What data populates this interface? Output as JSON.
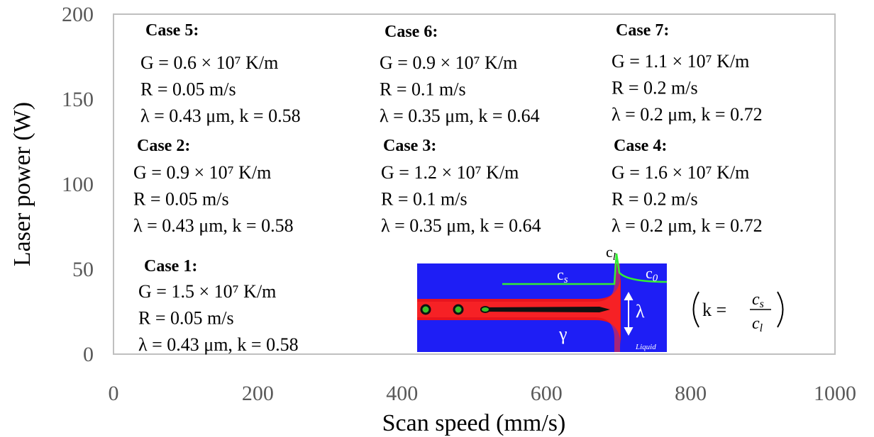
{
  "chart_data": {
    "type": "annotated-axes",
    "x_label": "Scan speed (mm/s)",
    "y_label": "Laser power (W)",
    "xlim": [
      0,
      1000
    ],
    "ylim": [
      0,
      200
    ],
    "xticks": [
      0,
      200,
      400,
      600,
      800,
      1000
    ],
    "yticks": [
      0,
      50,
      100,
      150,
      200
    ],
    "cases": [
      {
        "title": "Case 1:",
        "lines": [
          "G = 1.5 × 10⁷ K/m",
          "R = 0.05 m/s",
          "λ = 0.43 μm, k = 0.58"
        ]
      },
      {
        "title": "Case 2:",
        "lines": [
          "G = 0.9 × 10⁷ K/m",
          "R = 0.05 m/s",
          "λ = 0.43 μm, k = 0.58"
        ]
      },
      {
        "title": "Case 3:",
        "lines": [
          "G = 1.2 × 10⁷ K/m",
          "R = 0.1 m/s",
          "λ = 0.35 μm, k = 0.64"
        ]
      },
      {
        "title": "Case 4:",
        "lines": [
          "G = 1.6 × 10⁷ K/m",
          "R = 0.2 m/s",
          "λ = 0.2 μm, k = 0.72"
        ]
      },
      {
        "title": "Case 5:",
        "lines": [
          "G = 0.6 × 10⁷ K/m",
          "R = 0.05 m/s",
          "λ = 0.43 μm, k = 0.58"
        ]
      },
      {
        "title": "Case 6:",
        "lines": [
          "G = 0.9 × 10⁷ K/m",
          "R = 0.1 m/s",
          "λ = 0.35 μm, k = 0.64"
        ]
      },
      {
        "title": "Case 7:",
        "lines": [
          "G = 1.1 × 10⁷ K/m",
          "R = 0.2 m/s",
          "λ = 0.2 μm, k = 0.72"
        ]
      }
    ],
    "inset": {
      "cs": "c",
      "cs_sub": "s",
      "cl": "c",
      "cl_sub": "l",
      "c0": "c",
      "c0_sub": "0",
      "lambda": "λ",
      "gamma": "γ",
      "liquid": "Liquid",
      "formula_k": "k =",
      "formula_num": "c",
      "formula_num_sub": "s",
      "formula_den": "c",
      "formula_den_sub": "l"
    }
  }
}
